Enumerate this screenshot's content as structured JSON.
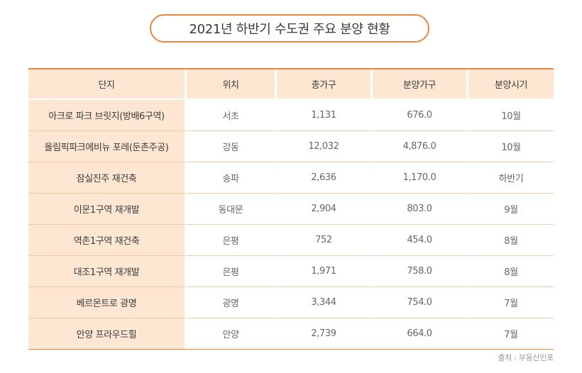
{
  "title": "2021년 하반기 수도권 주요 분양 현황",
  "columns": [
    "단지",
    "위치",
    "총가구",
    "분양가구",
    "분양시기"
  ],
  "rows": [
    {
      "name": "아크로 파크 브릿지(방배6구역)",
      "location": "서초",
      "total": "1,131",
      "sale": "676.0",
      "period": "10월"
    },
    {
      "name": "올림픽파크에비뉴 포레(둔촌주공)",
      "location": "강동",
      "total": "12,032",
      "sale": "4,876.0",
      "period": "10월"
    },
    {
      "name": "잠실진주 재건축",
      "location": "송파",
      "total": "2,636",
      "sale": "1,170.0",
      "period": "하반기"
    },
    {
      "name": "이문1구역 재개발",
      "location": "동대문",
      "total": "2,904",
      "sale": "803.0",
      "period": "9월"
    },
    {
      "name": "역촌1구역 재건축",
      "location": "은평",
      "total": "752",
      "sale": "454.0",
      "period": "8월"
    },
    {
      "name": "대조1구역 재개발",
      "location": "은평",
      "total": "1,971",
      "sale": "758.0",
      "period": "8월"
    },
    {
      "name": "베르몬트로 광명",
      "location": "광명",
      "total": "3,344",
      "sale": "754.0",
      "period": "7월"
    },
    {
      "name": "안양 프라우드힐",
      "location": "안양",
      "total": "2,739",
      "sale": "664.0",
      "period": "7월"
    }
  ],
  "source": "출처 : 부동산인포",
  "colors": {
    "accent": "#e8873a",
    "header_bg": "#fde6d2"
  }
}
